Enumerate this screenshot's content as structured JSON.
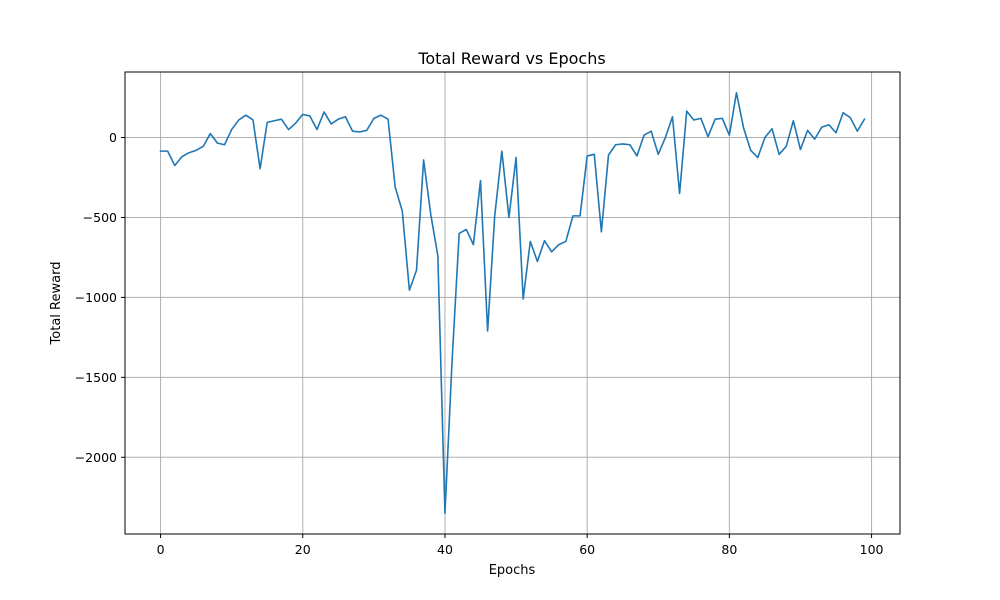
{
  "chart_data": {
    "type": "line",
    "title": "Total Reward vs Epochs",
    "xlabel": "Epochs",
    "ylabel": "Total Reward",
    "xlim": [
      -5,
      104
    ],
    "ylim": [
      -2480,
      410
    ],
    "xticks": [
      0,
      20,
      40,
      60,
      80,
      100
    ],
    "yticks": [
      -2000,
      -1500,
      -1000,
      -500,
      0
    ],
    "xtick_labels": [
      "0",
      "20",
      "40",
      "60",
      "80",
      "100"
    ],
    "ytick_labels": [
      "−2000",
      "−1500",
      "−1000",
      "−500",
      "0"
    ],
    "grid": true,
    "legend": "none",
    "line_color": "#1f77b4",
    "series": [
      {
        "x": [
          0,
          1,
          2,
          3,
          4,
          5,
          6,
          7,
          8,
          9,
          10,
          11,
          12,
          13,
          14,
          15,
          16,
          17,
          18,
          19,
          20,
          21,
          22,
          23,
          24,
          25,
          26,
          27,
          28,
          29,
          30,
          31,
          32,
          33,
          34,
          35,
          36,
          37,
          38,
          39,
          40,
          41,
          42,
          43,
          44,
          45,
          46,
          47,
          48,
          49,
          50,
          51,
          52,
          53,
          54,
          55,
          56,
          57,
          58,
          59,
          60,
          61,
          62,
          63,
          64,
          65,
          66,
          67,
          68,
          69,
          70,
          71,
          72,
          73,
          74,
          75,
          76,
          77,
          78,
          79,
          80,
          81,
          82,
          83,
          84,
          85,
          86,
          87,
          88,
          89,
          90,
          91,
          92,
          93,
          94,
          95,
          96,
          97,
          98,
          99
        ],
        "values": [
          -85,
          -85,
          -175,
          -120,
          -95,
          -80,
          -55,
          25,
          -35,
          -45,
          50,
          110,
          140,
          110,
          -195,
          95,
          105,
          115,
          50,
          90,
          145,
          135,
          50,
          160,
          85,
          115,
          130,
          40,
          35,
          45,
          120,
          140,
          115,
          -310,
          -460,
          -955,
          -830,
          -140,
          -480,
          -740,
          -2350,
          -1400,
          -600,
          -575,
          -670,
          -270,
          -1210,
          -490,
          -85,
          -500,
          -125,
          -1010,
          -650,
          -775,
          -645,
          -715,
          -670,
          -650,
          -490,
          -490,
          -115,
          -105,
          -590,
          -110,
          -45,
          -40,
          -45,
          -115,
          15,
          40,
          -105,
          0,
          130,
          -350,
          165,
          110,
          120,
          5,
          115,
          120,
          15,
          280,
          60,
          -80,
          -125,
          0,
          55,
          -105,
          -55,
          105,
          -75,
          45,
          -10,
          65,
          80,
          30,
          155,
          125,
          40,
          115
        ]
      }
    ]
  }
}
